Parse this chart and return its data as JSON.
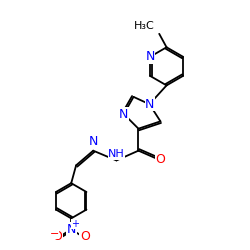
{
  "background_color": "#ffffff",
  "bond_color": "#000000",
  "nitrogen_color": "#0000ff",
  "oxygen_color": "#ff0000",
  "font_size": 8,
  "figsize": [
    2.5,
    2.5
  ],
  "dpi": 100,
  "xlim": [
    0,
    10
  ],
  "ylim": [
    0,
    10
  ]
}
